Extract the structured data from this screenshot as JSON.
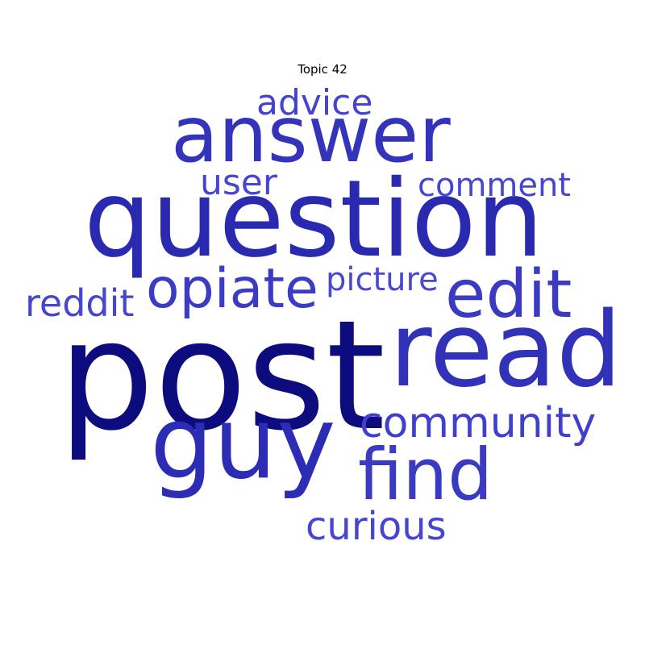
{
  "title": "Topic 42",
  "words": [
    {
      "text": "post",
      "color": "#0c0c7e"
    },
    {
      "text": "question",
      "color": "#2a2ab0"
    },
    {
      "text": "answer",
      "color": "#3434bb"
    },
    {
      "text": "read",
      "color": "#3232b8"
    },
    {
      "text": "guy",
      "color": "#2c2cb4"
    },
    {
      "text": "find",
      "color": "#3a3ac2"
    },
    {
      "text": "edit",
      "color": "#3a3ac2"
    },
    {
      "text": "opiate",
      "color": "#3b3bc6"
    },
    {
      "text": "community",
      "color": "#4040cc"
    },
    {
      "text": "advice",
      "color": "#4444d0"
    },
    {
      "text": "user",
      "color": "#4646d0"
    },
    {
      "text": "comment",
      "color": "#4646d0"
    },
    {
      "text": "picture",
      "color": "#4848d2"
    },
    {
      "text": "reddit",
      "color": "#4646d0"
    },
    {
      "text": "curious",
      "color": "#4646d0"
    }
  ]
}
